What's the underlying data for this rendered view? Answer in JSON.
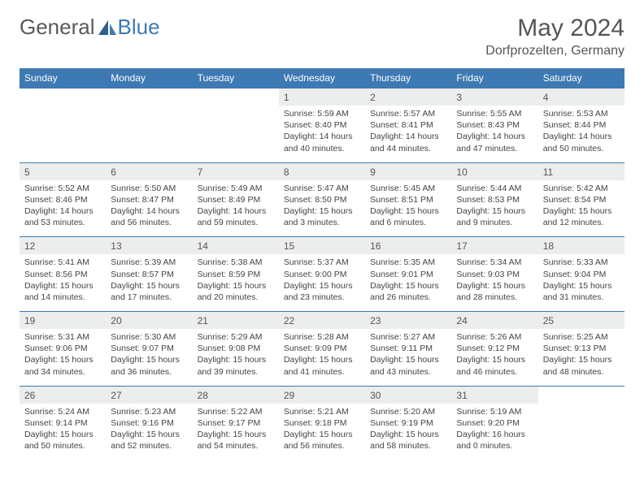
{
  "brand": {
    "part1": "General",
    "part2": "Blue"
  },
  "title": "May 2024",
  "location": "Dorfprozelten, Germany",
  "colors": {
    "header_bg": "#3d79b3",
    "header_text": "#ffffff",
    "daynum_bg": "#eceded",
    "row_border": "#3d79b3",
    "body_text": "#444444",
    "page_bg": "#ffffff"
  },
  "days_of_week": [
    "Sunday",
    "Monday",
    "Tuesday",
    "Wednesday",
    "Thursday",
    "Friday",
    "Saturday"
  ],
  "weeks": [
    {
      "cells": [
        {
          "empty": true
        },
        {
          "empty": true
        },
        {
          "empty": true
        },
        {
          "day": "1",
          "sunrise": "Sunrise: 5:59 AM",
          "sunset": "Sunset: 8:40 PM",
          "daylight1": "Daylight: 14 hours",
          "daylight2": "and 40 minutes."
        },
        {
          "day": "2",
          "sunrise": "Sunrise: 5:57 AM",
          "sunset": "Sunset: 8:41 PM",
          "daylight1": "Daylight: 14 hours",
          "daylight2": "and 44 minutes."
        },
        {
          "day": "3",
          "sunrise": "Sunrise: 5:55 AM",
          "sunset": "Sunset: 8:43 PM",
          "daylight1": "Daylight: 14 hours",
          "daylight2": "and 47 minutes."
        },
        {
          "day": "4",
          "sunrise": "Sunrise: 5:53 AM",
          "sunset": "Sunset: 8:44 PM",
          "daylight1": "Daylight: 14 hours",
          "daylight2": "and 50 minutes."
        }
      ]
    },
    {
      "cells": [
        {
          "day": "5",
          "sunrise": "Sunrise: 5:52 AM",
          "sunset": "Sunset: 8:46 PM",
          "daylight1": "Daylight: 14 hours",
          "daylight2": "and 53 minutes."
        },
        {
          "day": "6",
          "sunrise": "Sunrise: 5:50 AM",
          "sunset": "Sunset: 8:47 PM",
          "daylight1": "Daylight: 14 hours",
          "daylight2": "and 56 minutes."
        },
        {
          "day": "7",
          "sunrise": "Sunrise: 5:49 AM",
          "sunset": "Sunset: 8:49 PM",
          "daylight1": "Daylight: 14 hours",
          "daylight2": "and 59 minutes."
        },
        {
          "day": "8",
          "sunrise": "Sunrise: 5:47 AM",
          "sunset": "Sunset: 8:50 PM",
          "daylight1": "Daylight: 15 hours",
          "daylight2": "and 3 minutes."
        },
        {
          "day": "9",
          "sunrise": "Sunrise: 5:45 AM",
          "sunset": "Sunset: 8:51 PM",
          "daylight1": "Daylight: 15 hours",
          "daylight2": "and 6 minutes."
        },
        {
          "day": "10",
          "sunrise": "Sunrise: 5:44 AM",
          "sunset": "Sunset: 8:53 PM",
          "daylight1": "Daylight: 15 hours",
          "daylight2": "and 9 minutes."
        },
        {
          "day": "11",
          "sunrise": "Sunrise: 5:42 AM",
          "sunset": "Sunset: 8:54 PM",
          "daylight1": "Daylight: 15 hours",
          "daylight2": "and 12 minutes."
        }
      ]
    },
    {
      "cells": [
        {
          "day": "12",
          "sunrise": "Sunrise: 5:41 AM",
          "sunset": "Sunset: 8:56 PM",
          "daylight1": "Daylight: 15 hours",
          "daylight2": "and 14 minutes."
        },
        {
          "day": "13",
          "sunrise": "Sunrise: 5:39 AM",
          "sunset": "Sunset: 8:57 PM",
          "daylight1": "Daylight: 15 hours",
          "daylight2": "and 17 minutes."
        },
        {
          "day": "14",
          "sunrise": "Sunrise: 5:38 AM",
          "sunset": "Sunset: 8:59 PM",
          "daylight1": "Daylight: 15 hours",
          "daylight2": "and 20 minutes."
        },
        {
          "day": "15",
          "sunrise": "Sunrise: 5:37 AM",
          "sunset": "Sunset: 9:00 PM",
          "daylight1": "Daylight: 15 hours",
          "daylight2": "and 23 minutes."
        },
        {
          "day": "16",
          "sunrise": "Sunrise: 5:35 AM",
          "sunset": "Sunset: 9:01 PM",
          "daylight1": "Daylight: 15 hours",
          "daylight2": "and 26 minutes."
        },
        {
          "day": "17",
          "sunrise": "Sunrise: 5:34 AM",
          "sunset": "Sunset: 9:03 PM",
          "daylight1": "Daylight: 15 hours",
          "daylight2": "and 28 minutes."
        },
        {
          "day": "18",
          "sunrise": "Sunrise: 5:33 AM",
          "sunset": "Sunset: 9:04 PM",
          "daylight1": "Daylight: 15 hours",
          "daylight2": "and 31 minutes."
        }
      ]
    },
    {
      "cells": [
        {
          "day": "19",
          "sunrise": "Sunrise: 5:31 AM",
          "sunset": "Sunset: 9:06 PM",
          "daylight1": "Daylight: 15 hours",
          "daylight2": "and 34 minutes."
        },
        {
          "day": "20",
          "sunrise": "Sunrise: 5:30 AM",
          "sunset": "Sunset: 9:07 PM",
          "daylight1": "Daylight: 15 hours",
          "daylight2": "and 36 minutes."
        },
        {
          "day": "21",
          "sunrise": "Sunrise: 5:29 AM",
          "sunset": "Sunset: 9:08 PM",
          "daylight1": "Daylight: 15 hours",
          "daylight2": "and 39 minutes."
        },
        {
          "day": "22",
          "sunrise": "Sunrise: 5:28 AM",
          "sunset": "Sunset: 9:09 PM",
          "daylight1": "Daylight: 15 hours",
          "daylight2": "and 41 minutes."
        },
        {
          "day": "23",
          "sunrise": "Sunrise: 5:27 AM",
          "sunset": "Sunset: 9:11 PM",
          "daylight1": "Daylight: 15 hours",
          "daylight2": "and 43 minutes."
        },
        {
          "day": "24",
          "sunrise": "Sunrise: 5:26 AM",
          "sunset": "Sunset: 9:12 PM",
          "daylight1": "Daylight: 15 hours",
          "daylight2": "and 46 minutes."
        },
        {
          "day": "25",
          "sunrise": "Sunrise: 5:25 AM",
          "sunset": "Sunset: 9:13 PM",
          "daylight1": "Daylight: 15 hours",
          "daylight2": "and 48 minutes."
        }
      ]
    },
    {
      "cells": [
        {
          "day": "26",
          "sunrise": "Sunrise: 5:24 AM",
          "sunset": "Sunset: 9:14 PM",
          "daylight1": "Daylight: 15 hours",
          "daylight2": "and 50 minutes."
        },
        {
          "day": "27",
          "sunrise": "Sunrise: 5:23 AM",
          "sunset": "Sunset: 9:16 PM",
          "daylight1": "Daylight: 15 hours",
          "daylight2": "and 52 minutes."
        },
        {
          "day": "28",
          "sunrise": "Sunrise: 5:22 AM",
          "sunset": "Sunset: 9:17 PM",
          "daylight1": "Daylight: 15 hours",
          "daylight2": "and 54 minutes."
        },
        {
          "day": "29",
          "sunrise": "Sunrise: 5:21 AM",
          "sunset": "Sunset: 9:18 PM",
          "daylight1": "Daylight: 15 hours",
          "daylight2": "and 56 minutes."
        },
        {
          "day": "30",
          "sunrise": "Sunrise: 5:20 AM",
          "sunset": "Sunset: 9:19 PM",
          "daylight1": "Daylight: 15 hours",
          "daylight2": "and 58 minutes."
        },
        {
          "day": "31",
          "sunrise": "Sunrise: 5:19 AM",
          "sunset": "Sunset: 9:20 PM",
          "daylight1": "Daylight: 16 hours",
          "daylight2": "and 0 minutes."
        },
        {
          "empty": true
        }
      ]
    }
  ]
}
